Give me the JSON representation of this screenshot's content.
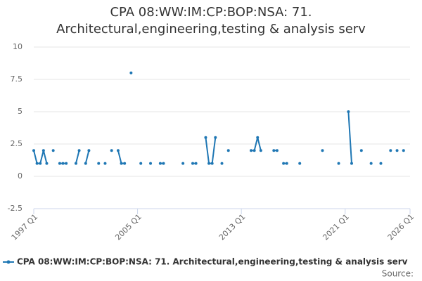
{
  "chart_data": {
    "type": "line",
    "title": "CPA 08:WW:IM:CP:BOP:NSA: 71. Architectural,engineering,testing & analysis serv",
    "source": "Source:",
    "categories": [
      "1997 Q1",
      null,
      null,
      null,
      null,
      null,
      null,
      null,
      null,
      null,
      null,
      null,
      null,
      null,
      null,
      null,
      null,
      null,
      null,
      null,
      null,
      null,
      null,
      null,
      null,
      null,
      null,
      null,
      null,
      null,
      null,
      null,
      "2005 Q1",
      null,
      null,
      null,
      null,
      null,
      null,
      null,
      null,
      null,
      null,
      null,
      null,
      null,
      null,
      null,
      null,
      null,
      null,
      null,
      null,
      null,
      null,
      null,
      null,
      null,
      null,
      null,
      null,
      null,
      null,
      null,
      "2013 Q1",
      null,
      null,
      null,
      null,
      null,
      null,
      null,
      null,
      null,
      null,
      null,
      null,
      null,
      null,
      null,
      null,
      null,
      null,
      null,
      null,
      null,
      null,
      null,
      null,
      null,
      null,
      null,
      null,
      null,
      null,
      null,
      "2021 Q1",
      null,
      null,
      null,
      null,
      null,
      null,
      null,
      null,
      null,
      null,
      null,
      null,
      null,
      null,
      null,
      null,
      null,
      null,
      null,
      "2026 Q1"
    ],
    "series": [
      {
        "name": "CPA 08:WW:IM:CP:BOP:NSA: 71. Architectural,engineering,testing & analysis serv",
        "color": "#1f77b4",
        "values": [
          2,
          1,
          1,
          2,
          1,
          null,
          2,
          null,
          1,
          1,
          1,
          null,
          null,
          1,
          2,
          null,
          1,
          2,
          null,
          null,
          1,
          null,
          1,
          null,
          2,
          null,
          2,
          1,
          1,
          null,
          8,
          null,
          null,
          1,
          null,
          null,
          1,
          null,
          null,
          1,
          1,
          null,
          null,
          null,
          null,
          null,
          1,
          null,
          null,
          1,
          1,
          null,
          null,
          3,
          1,
          1,
          3,
          null,
          1,
          null,
          2,
          null,
          null,
          null,
          null,
          null,
          null,
          2,
          2,
          3,
          2,
          null,
          null,
          null,
          2,
          2,
          null,
          1,
          1,
          null,
          null,
          null,
          1,
          null,
          null,
          null,
          null,
          null,
          null,
          2,
          null,
          null,
          null,
          null,
          1,
          null,
          null,
          5,
          1,
          null,
          null,
          2,
          null,
          null,
          1,
          null,
          null,
          1,
          null,
          null,
          2,
          null,
          2,
          null,
          2,
          null,
          null
        ]
      }
    ],
    "ylim": [
      -2.5,
      10
    ],
    "yticks": [
      -2.5,
      0,
      2.5,
      5,
      7.5,
      10
    ],
    "grid": true
  }
}
